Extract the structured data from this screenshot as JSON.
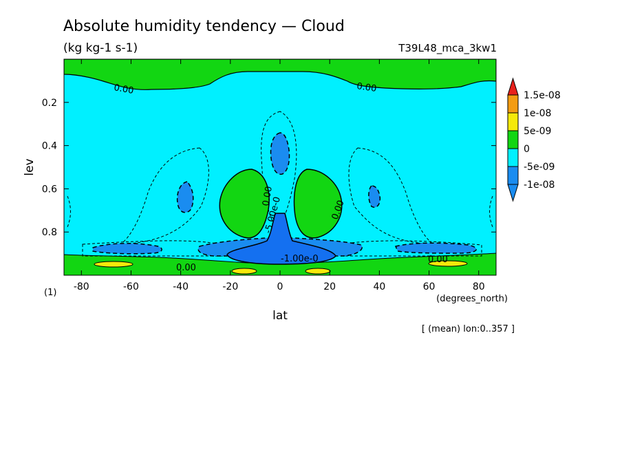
{
  "chart_data": {
    "type": "heatmap",
    "title": "Absolute humidity tendency — Cloud",
    "subtitle": "(kg kg-1 s-1)",
    "run_label": "T39L48_mca_3kw1",
    "xlabel": "lat",
    "x_units": "(degrees_north)",
    "ylabel": "lev",
    "y_units": "(1)",
    "footer": "[ (mean) lon:0..357 ]",
    "xlim": [
      -87,
      87
    ],
    "ylim": [
      1.0,
      0.0
    ],
    "y_reversed": true,
    "x_ticks": [
      "-80",
      "-60",
      "-40",
      "-20",
      "0",
      "20",
      "40",
      "60",
      "80"
    ],
    "y_ticks": [
      "0.2",
      "0.4",
      "0.6",
      "0.8"
    ],
    "legend": {
      "placement": "right",
      "levels": [
        {
          "label": "1.5e-08",
          "color": "#e8211c"
        },
        {
          "label": "1e-08",
          "color": "#f39c12"
        },
        {
          "label": "5e-09",
          "color": "#f5e90a"
        },
        {
          "label": "0",
          "color": "#12d612"
        },
        {
          "label": "-5e-09",
          "color": "#00f0ff"
        },
        {
          "label": "-1e-08",
          "color": "#1a8cf0"
        }
      ]
    },
    "contour_labels": [
      "0.00",
      "0.00",
      "0.00",
      "0.00",
      "0.00",
      "0.00",
      "0.00",
      "-5.00e-0",
      "-1.00e-0"
    ]
  },
  "colors": {
    "green": "#12d612",
    "cyan": "#00f0ff",
    "blue1": "#3cb0f0",
    "blue2": "#1470f0",
    "yellow": "#f5e90a",
    "orange": "#f39c12",
    "red": "#e8211c"
  }
}
